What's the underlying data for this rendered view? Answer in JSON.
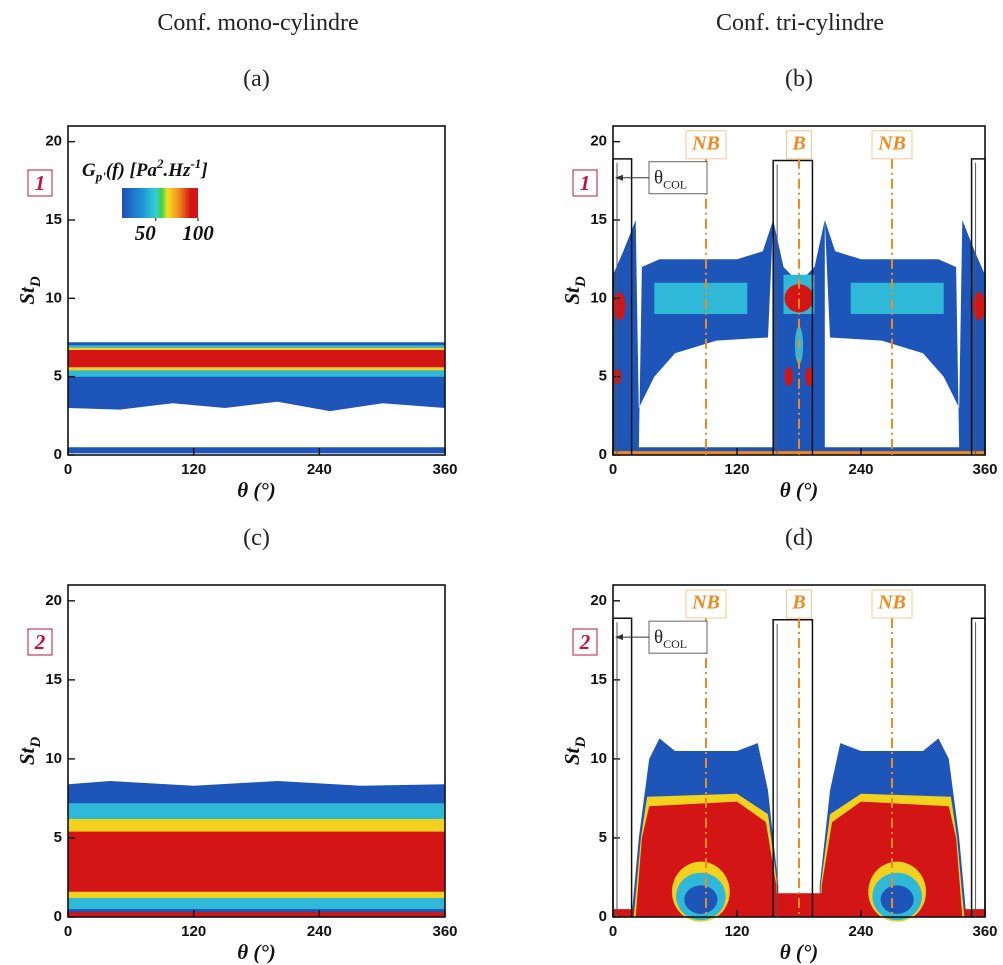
{
  "columns": [
    "Conf. mono-cylindre",
    "Conf. tri-cylindre"
  ],
  "chart_data": [
    {
      "type": "spectrogram",
      "title": "(a)",
      "case": "1",
      "xlabel": "θ (°)",
      "ylabel": "St",
      "ylabel_sub": "D",
      "xlim": [
        0,
        360
      ],
      "ylim": [
        0,
        21
      ],
      "xticks": [
        0,
        120,
        240,
        360
      ],
      "yticks": [
        0,
        5,
        10,
        15,
        20
      ],
      "colorbar": {
        "label": [
          {
            "text": "G"
          },
          {
            "text": "p'",
            "sub": true
          },
          {
            "text": "(f) [Pa"
          },
          {
            "text": "2",
            "sup": true
          },
          {
            "text": ".Hz"
          },
          {
            "text": "-1",
            "sup": true
          },
          {
            "text": "]"
          }
        ],
        "clim": [
          10,
          100
        ],
        "ticks": [
          50,
          100
        ]
      }
    },
    {
      "type": "spectrogram",
      "title": "(b)",
      "case": "1",
      "xlabel": "θ (°)",
      "ylabel": "St",
      "ylabel_sub": "D",
      "xlim": [
        0,
        360
      ],
      "ylim": [
        0,
        21
      ],
      "xticks": [
        0,
        120,
        240,
        360
      ],
      "yticks": [
        0,
        5,
        10,
        15,
        20
      ],
      "markers": [
        {
          "label": "NB",
          "x": 90
        },
        {
          "label": "B",
          "x": 180
        },
        {
          "label": "NB",
          "x": 270
        }
      ],
      "windows": [
        {
          "start": 0,
          "end": 18,
          "height": 18.9
        },
        {
          "start": 155,
          "end": 193,
          "height": 18.8
        },
        {
          "start": 347,
          "end": 360,
          "height": 18.9
        }
      ],
      "annotation": "θ",
      "annotation_sub": "COL"
    },
    {
      "type": "spectrogram",
      "title": "(c)",
      "case": "2",
      "xlabel": "θ (°)",
      "ylabel": "St",
      "ylabel_sub": "D",
      "xlim": [
        0,
        360
      ],
      "ylim": [
        0,
        21
      ],
      "xticks": [
        0,
        120,
        240,
        360
      ],
      "yticks": [
        0,
        5,
        10,
        15,
        20
      ]
    },
    {
      "type": "spectrogram",
      "title": "(d)",
      "case": "2",
      "xlabel": "θ (°)",
      "ylabel": "St",
      "ylabel_sub": "D",
      "xlim": [
        0,
        360
      ],
      "ylim": [
        0,
        21
      ],
      "xticks": [
        0,
        120,
        240,
        360
      ],
      "yticks": [
        0,
        5,
        10,
        15,
        20
      ],
      "markers": [
        {
          "label": "NB",
          "x": 90
        },
        {
          "label": "B",
          "x": 180
        },
        {
          "label": "NB",
          "x": 270
        }
      ],
      "windows": [
        {
          "start": 0,
          "end": 18,
          "height": 18.9
        },
        {
          "start": 155,
          "end": 193,
          "height": 18.8
        },
        {
          "start": 347,
          "end": 360,
          "height": 18.9
        }
      ],
      "annotation": "θ",
      "annotation_sub": "COL"
    }
  ]
}
